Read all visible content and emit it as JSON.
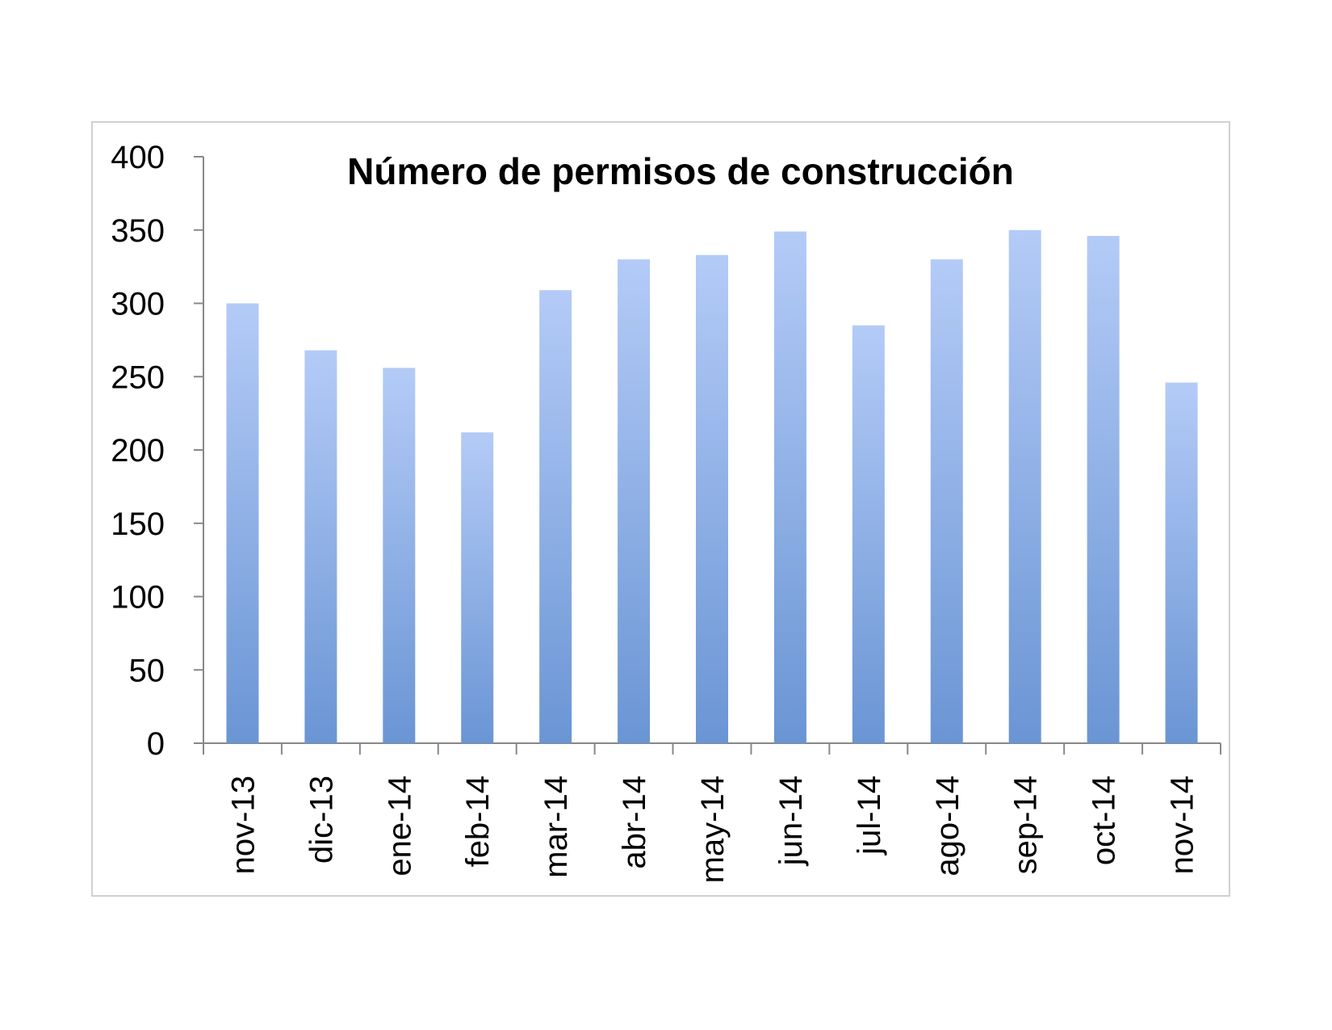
{
  "chart_data": {
    "type": "bar",
    "title": "Número de permisos de construcción",
    "xlabel": "",
    "ylabel": "",
    "categories": [
      "nov-13",
      "dic-13",
      "ene-14",
      "feb-14",
      "mar-14",
      "abr-14",
      "may-14",
      "jun-14",
      "jul-14",
      "ago-14",
      "sep-14",
      "oct-14",
      "nov-14"
    ],
    "values": [
      300,
      268,
      256,
      212,
      309,
      330,
      333,
      349,
      285,
      330,
      350,
      346,
      246
    ],
    "ylim": [
      0,
      400
    ],
    "yticks": [
      "0",
      "50",
      "100",
      "150",
      "200",
      "250",
      "300",
      "350",
      "400"
    ],
    "grid": false,
    "legend": "none",
    "bar_color_top": "#b4cbf7",
    "bar_color_bottom": "#6a95d4"
  }
}
